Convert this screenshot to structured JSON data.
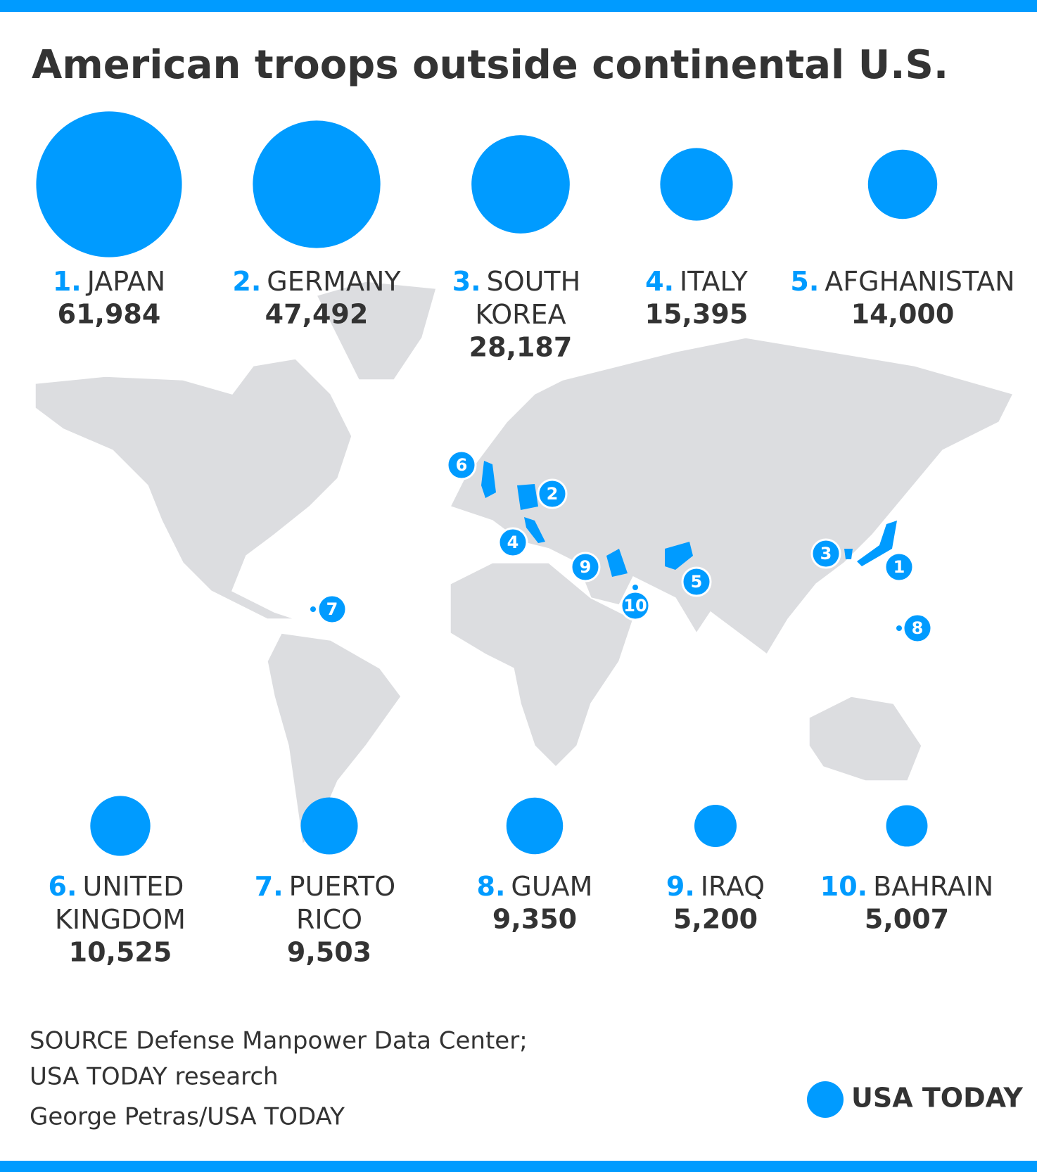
{
  "chart_data": {
    "type": "bubble",
    "title": "American troops outside continental U.S.",
    "rank_labels": [
      "1.",
      "2.",
      "3.",
      "4.",
      "5.",
      "6.",
      "7.",
      "8.",
      "9.",
      "10."
    ],
    "categories": [
      "JAPAN",
      "GERMANY",
      "SOUTH KOREA",
      "ITALY",
      "AFGHANISTAN",
      "UNITED KINGDOM",
      "PUERTO RICO",
      "GUAM",
      "IRAQ",
      "BAHRAIN"
    ],
    "values": [
      61984,
      47492,
      28187,
      15395,
      14000,
      10525,
      9503,
      9350,
      5200,
      5007
    ],
    "value_labels": [
      "61,984",
      "47,492",
      "28,187",
      "15,395",
      "14,000",
      "10,525",
      "9,503",
      "9,350",
      "5,200",
      "5,007"
    ],
    "color": "#009bff",
    "map_markers": [
      "1",
      "2",
      "3",
      "4",
      "5",
      "6",
      "7",
      "8",
      "9",
      "10"
    ],
    "source": [
      "SOURCE Defense Manpower Data Center;",
      "USA TODAY research"
    ],
    "credit": "George Petras/USA TODAY",
    "logo": "USA TODAY"
  }
}
